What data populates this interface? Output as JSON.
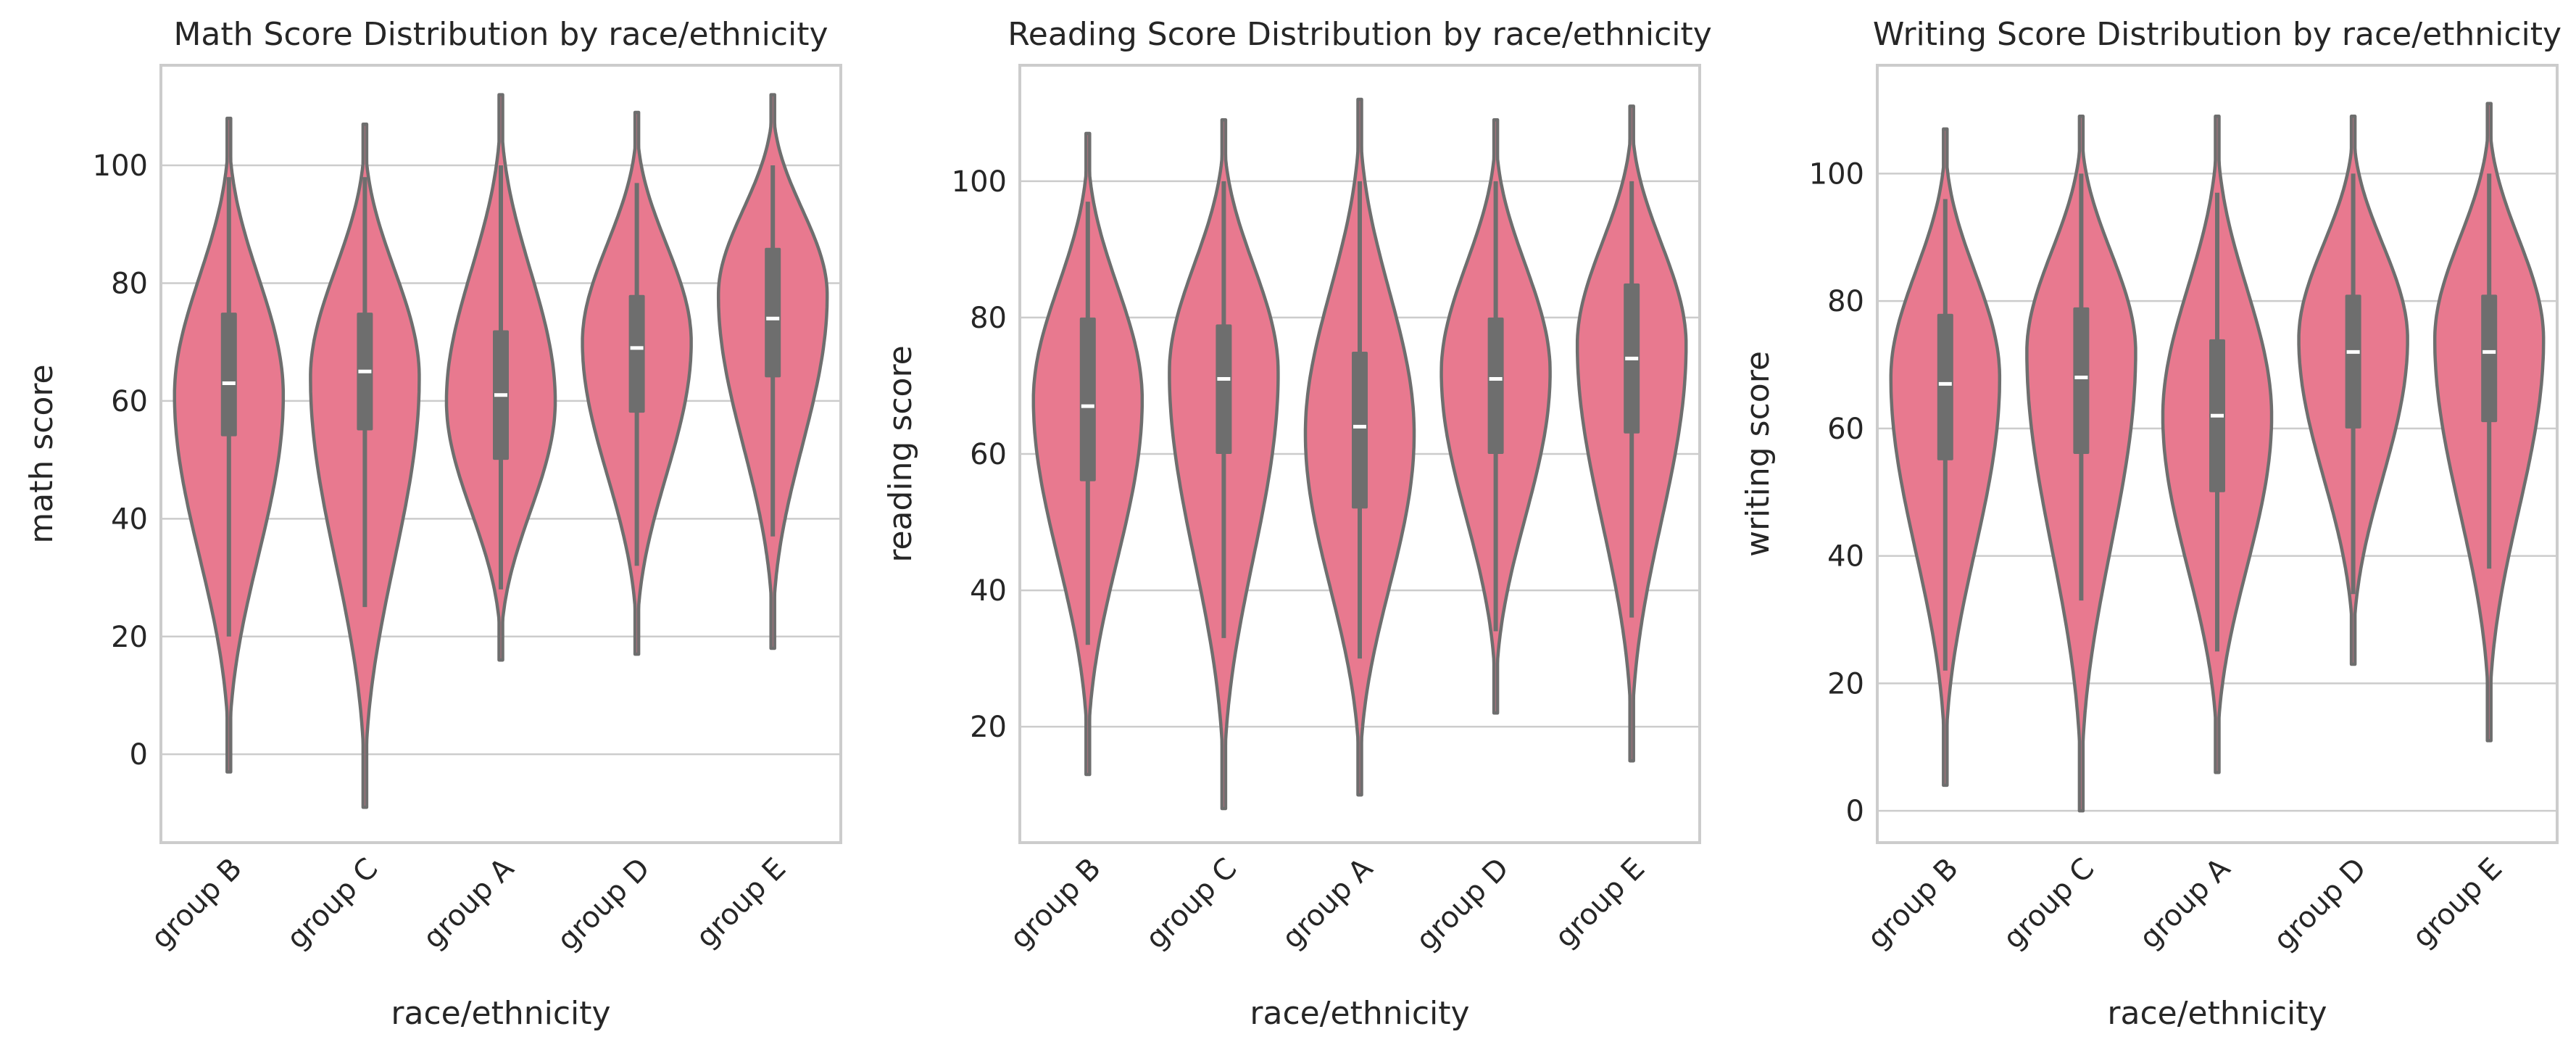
{
  "colors": {
    "violin_fill": "#e8798f",
    "violin_edge": "#6e6e6e",
    "box": "#6e6e6e",
    "median": "#ffffff",
    "grid": "#cccccc",
    "frame": "#cccccc",
    "text": "#262626"
  },
  "chart_data": [
    {
      "type": "violin",
      "title": "Math Score Distribution by race/ethnicity",
      "xlabel": "race/ethnicity",
      "ylabel": "math score",
      "ylim": [
        -15,
        117
      ],
      "yticks": [
        0,
        20,
        40,
        60,
        80,
        100
      ],
      "grid": "horizontal",
      "categories": [
        "group B",
        "group C",
        "group A",
        "group D",
        "group E"
      ],
      "series": [
        {
          "min": -3,
          "whisker_low": 20,
          "q1": 54,
          "median": 63,
          "q3": 75,
          "whisker_high": 98,
          "max": 108,
          "mode": 61
        },
        {
          "min": -9,
          "whisker_low": 25,
          "q1": 55,
          "median": 65,
          "q3": 75,
          "whisker_high": 98,
          "max": 107,
          "mode": 64
        },
        {
          "min": 16,
          "whisker_low": 28,
          "q1": 50,
          "median": 61,
          "q3": 72,
          "whisker_high": 100,
          "max": 112,
          "mode": 60
        },
        {
          "min": 17,
          "whisker_low": 32,
          "q1": 58,
          "median": 69,
          "q3": 78,
          "whisker_high": 97,
          "max": 109,
          "mode": 70
        },
        {
          "min": 18,
          "whisker_low": 37,
          "q1": 64,
          "median": 74,
          "q3": 86,
          "whisker_high": 100,
          "max": 112,
          "mode": 78
        }
      ]
    },
    {
      "type": "violin",
      "title": "Reading Score Distribution by race/ethnicity",
      "xlabel": "race/ethnicity",
      "ylabel": "reading score",
      "ylim": [
        3,
        117
      ],
      "yticks": [
        20,
        40,
        60,
        80,
        100
      ],
      "grid": "horizontal",
      "categories": [
        "group B",
        "group C",
        "group A",
        "group D",
        "group E"
      ],
      "series": [
        {
          "min": 13,
          "whisker_low": 32,
          "q1": 56,
          "median": 67,
          "q3": 80,
          "whisker_high": 97,
          "max": 107,
          "mode": 68
        },
        {
          "min": 8,
          "whisker_low": 33,
          "q1": 60,
          "median": 71,
          "q3": 79,
          "whisker_high": 100,
          "max": 109,
          "mode": 72
        },
        {
          "min": 10,
          "whisker_low": 30,
          "q1": 52,
          "median": 64,
          "q3": 75,
          "whisker_high": 100,
          "max": 112,
          "mode": 63
        },
        {
          "min": 22,
          "whisker_low": 34,
          "q1": 60,
          "median": 71,
          "q3": 80,
          "whisker_high": 100,
          "max": 109,
          "mode": 72
        },
        {
          "min": 15,
          "whisker_low": 36,
          "q1": 63,
          "median": 74,
          "q3": 85,
          "whisker_high": 100,
          "max": 111,
          "mode": 76
        }
      ]
    },
    {
      "type": "violin",
      "title": "Writing Score Distribution by race/ethnicity",
      "xlabel": "race/ethnicity",
      "ylabel": "writing score",
      "ylim": [
        -5,
        117
      ],
      "yticks": [
        0,
        20,
        40,
        60,
        80,
        100
      ],
      "grid": "horizontal",
      "categories": [
        "group B",
        "group C",
        "group A",
        "group D",
        "group E"
      ],
      "series": [
        {
          "min": 4,
          "whisker_low": 22,
          "q1": 55,
          "median": 67,
          "q3": 78,
          "whisker_high": 96,
          "max": 107,
          "mode": 68
        },
        {
          "min": 0,
          "whisker_low": 33,
          "q1": 56,
          "median": 68,
          "q3": 79,
          "whisker_high": 100,
          "max": 109,
          "mode": 72
        },
        {
          "min": 6,
          "whisker_low": 25,
          "q1": 50,
          "median": 62,
          "q3": 74,
          "whisker_high": 97,
          "max": 109,
          "mode": 62
        },
        {
          "min": 23,
          "whisker_low": 34,
          "q1": 60,
          "median": 72,
          "q3": 81,
          "whisker_high": 100,
          "max": 109,
          "mode": 74
        },
        {
          "min": 11,
          "whisker_low": 38,
          "q1": 61,
          "median": 72,
          "q3": 81,
          "whisker_high": 100,
          "max": 111,
          "mode": 74
        }
      ]
    }
  ]
}
